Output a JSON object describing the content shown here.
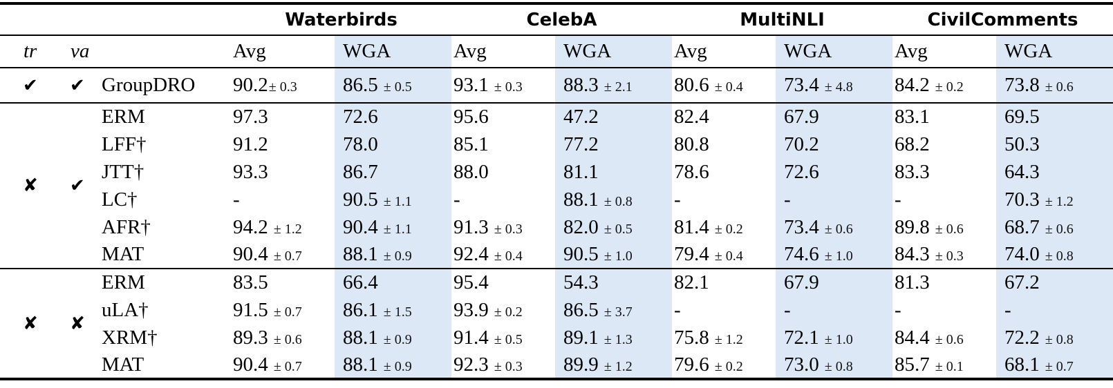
{
  "table": {
    "datasets": [
      "Waterbirds",
      "CelebA",
      "MultiNLI",
      "CivilComments"
    ],
    "columns": {
      "tr": "tr",
      "va": "va",
      "avg": "Avg",
      "wga": "WGA"
    },
    "colors": {
      "wga_highlight": "#dce8f6",
      "rule": "#000000",
      "text": "#000000"
    },
    "sections": [
      {
        "tr": {
          "icon": "check-icon",
          "glyph": "✔"
        },
        "va": {
          "icon": "check-icon",
          "glyph": "✔"
        },
        "rows": [
          {
            "method": "GroupDRO",
            "cells": [
              {
                "m": "90.2",
                "e": "± 0.3",
                "tight": true
              },
              {
                "m": "86.5",
                "e": "± 0.5"
              },
              {
                "m": "93.1",
                "e": "± 0.3"
              },
              {
                "m": "88.3",
                "e": "± 2.1"
              },
              {
                "m": "80.6",
                "e": "± 0.4"
              },
              {
                "m": "73.4",
                "e": "± 4.8"
              },
              {
                "m": "84.2",
                "e": "± 0.2"
              },
              {
                "m": "73.8",
                "e": "± 0.6"
              }
            ]
          }
        ]
      },
      {
        "tr": {
          "icon": "cross-icon",
          "glyph": "✘"
        },
        "va": {
          "icon": "check-icon",
          "glyph": "✔"
        },
        "rows": [
          {
            "method": "ERM",
            "cells": [
              {
                "m": "97.3"
              },
              {
                "m": "72.6"
              },
              {
                "m": "95.6"
              },
              {
                "m": "47.2"
              },
              {
                "m": "82.4"
              },
              {
                "m": "67.9"
              },
              {
                "m": "83.1"
              },
              {
                "m": "69.5"
              }
            ]
          },
          {
            "method": "LFF†",
            "cells": [
              {
                "m": "91.2"
              },
              {
                "m": "78.0"
              },
              {
                "m": "85.1"
              },
              {
                "m": "77.2"
              },
              {
                "m": "80.8"
              },
              {
                "m": "70.2"
              },
              {
                "m": "68.2"
              },
              {
                "m": "50.3"
              }
            ]
          },
          {
            "method": "JTT†",
            "cells": [
              {
                "m": "93.3"
              },
              {
                "m": "86.7"
              },
              {
                "m": "88.0"
              },
              {
                "m": "81.1"
              },
              {
                "m": "78.6"
              },
              {
                "m": "72.6"
              },
              {
                "m": "83.3"
              },
              {
                "m": "64.3"
              }
            ]
          },
          {
            "method": "LC†",
            "cells": [
              {
                "m": "-"
              },
              {
                "m": "90.5",
                "e": "± 1.1"
              },
              {
                "m": "-"
              },
              {
                "m": "88.1",
                "e": "± 0.8"
              },
              {
                "m": "-"
              },
              {
                "m": "-"
              },
              {
                "m": "-"
              },
              {
                "m": "70.3",
                "e": "± 1.2"
              }
            ]
          },
          {
            "method": "AFR†",
            "cells": [
              {
                "m": "94.2",
                "e": "± 1.2"
              },
              {
                "m": "90.4",
                "e": "± 1.1"
              },
              {
                "m": "91.3",
                "e": "± 0.3"
              },
              {
                "m": "82.0",
                "e": "± 0.5"
              },
              {
                "m": "81.4",
                "e": "± 0.2"
              },
              {
                "m": "73.4",
                "e": "± 0.6"
              },
              {
                "m": "89.8",
                "e": "± 0.6"
              },
              {
                "m": "68.7",
                "e": "± 0.6"
              }
            ]
          },
          {
            "method": "MAT",
            "cells": [
              {
                "m": "90.4",
                "e": "± 0.7"
              },
              {
                "m": "88.1",
                "e": "± 0.9"
              },
              {
                "m": "92.4",
                "e": "± 0.4"
              },
              {
                "m": "90.5",
                "e": "± 1.0"
              },
              {
                "m": "79.4",
                "e": "± 0.4"
              },
              {
                "m": "74.6",
                "e": "± 1.0"
              },
              {
                "m": "84.3",
                "e": "± 0.3"
              },
              {
                "m": "74.0",
                "e": "± 0.8"
              }
            ]
          }
        ]
      },
      {
        "tr": {
          "icon": "cross-icon",
          "glyph": "✘"
        },
        "va": {
          "icon": "cross-icon",
          "glyph": "✘"
        },
        "rows": [
          {
            "method": "ERM",
            "cells": [
              {
                "m": "83.5"
              },
              {
                "m": "66.4"
              },
              {
                "m": "95.4"
              },
              {
                "m": "54.3"
              },
              {
                "m": "82.1"
              },
              {
                "m": "67.9"
              },
              {
                "m": "81.3"
              },
              {
                "m": "67.2"
              }
            ]
          },
          {
            "method": "uLA†",
            "cells": [
              {
                "m": "91.5",
                "e": "± 0.7"
              },
              {
                "m": "86.1",
                "e": "± 1.5"
              },
              {
                "m": "93.9",
                "e": "± 0.2"
              },
              {
                "m": "86.5",
                "e": "± 3.7"
              },
              {
                "m": "-"
              },
              {
                "m": "-"
              },
              {
                "m": "-"
              },
              {
                "m": "-"
              }
            ]
          },
          {
            "method": "XRM†",
            "cells": [
              {
                "m": "89.3",
                "e": "± 0.6"
              },
              {
                "m": "88.1",
                "e": "± 0.9"
              },
              {
                "m": "91.4",
                "e": "± 0.5"
              },
              {
                "m": "89.1",
                "e": "± 1.3"
              },
              {
                "m": "75.8",
                "e": "± 1.2"
              },
              {
                "m": "72.1",
                "e": "± 1.0"
              },
              {
                "m": "84.4",
                "e": "± 0.6"
              },
              {
                "m": "72.2",
                "e": "± 0.8"
              }
            ]
          },
          {
            "method": "MAT",
            "cells": [
              {
                "m": "90.4",
                "e": "± 0.7"
              },
              {
                "m": "88.1",
                "e": "± 0.9"
              },
              {
                "m": "92.3",
                "e": "± 0.3"
              },
              {
                "m": "89.9",
                "e": "± 1.2"
              },
              {
                "m": "79.6",
                "e": "± 0.2"
              },
              {
                "m": "73.0",
                "e": "± 0.8"
              },
              {
                "m": "85.7",
                "e": "± 0.1"
              },
              {
                "m": "68.1",
                "e": "± 0.7"
              }
            ]
          }
        ]
      }
    ]
  }
}
